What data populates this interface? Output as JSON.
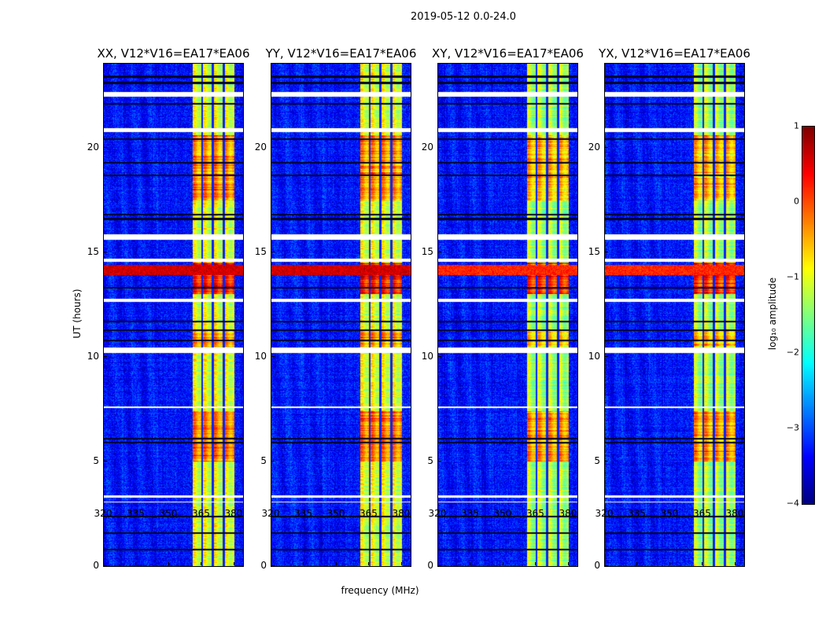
{
  "suptitle": "2019-05-12 0.0-24.0",
  "chart_data": {
    "type": "heatmap",
    "title": "2019-05-12 0.0-24.0",
    "xlabel": "frequency (MHz)",
    "ylabel": "UT (hours)",
    "xlim": [
      320,
      384
    ],
    "ylim": [
      0,
      24
    ],
    "xticks": [
      320,
      335,
      350,
      365,
      380
    ],
    "yticks": [
      0,
      5,
      10,
      15,
      20
    ],
    "panels": [
      {
        "title": "XX, V12*V16=EA17*EA06"
      },
      {
        "title": "YY, V12*V16=EA17*EA06"
      },
      {
        "title": "XY, V12*V16=EA17*EA06"
      },
      {
        "title": "YX, V12*V16=EA17*EA06"
      }
    ],
    "colorbar": {
      "label": "log₁₀ amplitude",
      "range": [
        -4,
        1
      ],
      "ticks": [
        "1",
        "0",
        "−1",
        "−2",
        "−3",
        "−4"
      ],
      "colormap": "jet"
    },
    "background_level": -3.3,
    "rfi_band_mhz": [
      360.5,
      380
    ],
    "rfi_band_level": -1.0,
    "band_notches_mhz": [
      365,
      370,
      375
    ],
    "enhanced_periods_hours": [
      [
        5.0,
        7.4,
        -0.2
      ],
      [
        17.5,
        20.6,
        -0.3
      ],
      [
        13.0,
        14.5,
        0.3
      ],
      [
        10.5,
        11.3,
        -0.4
      ]
    ],
    "broadband_rfi_hours": [
      [
        13.9,
        14.4,
        0.6
      ]
    ],
    "flagged_gaps_hours": [
      [
        22.45,
        22.65
      ],
      [
        20.75,
        20.95
      ],
      [
        15.6,
        15.85
      ],
      [
        14.55,
        14.7
      ],
      [
        12.65,
        12.8
      ],
      [
        10.2,
        10.45
      ],
      [
        7.55,
        7.65
      ],
      [
        3.28,
        3.4
      ],
      [
        3.05,
        3.1
      ]
    ],
    "dark_rows_hours": [
      23.4,
      23.1,
      22.1,
      20.4,
      19.3,
      18.7,
      16.8,
      16.6,
      13.3,
      11.7,
      11.3,
      10.8,
      6.1,
      5.9,
      2.4,
      1.6,
      0.8
    ]
  }
}
